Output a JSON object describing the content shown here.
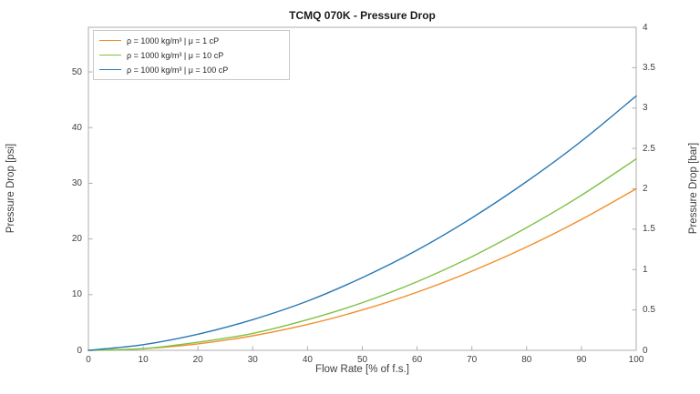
{
  "figure": {
    "background": "#ffffff",
    "axis_color": "#adadad",
    "tick_text_color": "#404040"
  },
  "chart_data": {
    "type": "line",
    "title": "TCMQ 070K - Pressure Drop",
    "xlabel": "Flow Rate [% of f.s.]",
    "ylabel_left": "Pressure Drop [psi]",
    "ylabel_right": "Pressure Drop [bar]",
    "grid": false,
    "legend_position": "top-left-inside",
    "xlim": [
      0,
      100
    ],
    "ylim_left_psi": [
      0,
      58
    ],
    "ylim_right_bar": [
      0,
      4
    ],
    "xticks": [
      0,
      10,
      20,
      30,
      40,
      50,
      60,
      70,
      80,
      90,
      100
    ],
    "yticks_left_psi": [
      0,
      10,
      20,
      30,
      40,
      50
    ],
    "yticks_right_bar": [
      0,
      0.5,
      1,
      1.5,
      2,
      2.5,
      3,
      3.5,
      4
    ],
    "x_percent_fs": [
      0,
      10,
      20,
      30,
      40,
      50,
      60,
      70,
      80,
      90,
      100
    ],
    "series": [
      {
        "name": "rho-1000-mu-1cP",
        "label": "ρ = 1000 kg/m³ | μ = 1 cP",
        "color": "#f28e2c",
        "values_bar": [
          0,
          0.02,
          0.08,
          0.18,
          0.32,
          0.5,
          0.72,
          0.98,
          1.28,
          1.62,
          2.0
        ],
        "values_psi": [
          0,
          0.3,
          1.2,
          2.6,
          4.6,
          7.3,
          10.4,
          14.2,
          18.6,
          23.5,
          29.0
        ]
      },
      {
        "name": "rho-1000-mu-10cP",
        "label": "ρ = 1000 kg/m³ | μ = 10 cP",
        "color": "#7dc243",
        "values_bar": [
          0,
          0.02,
          0.1,
          0.21,
          0.38,
          0.59,
          0.85,
          1.16,
          1.52,
          1.92,
          2.37
        ],
        "values_psi": [
          0,
          0.3,
          1.5,
          3.0,
          5.5,
          8.6,
          12.3,
          16.8,
          22.0,
          27.8,
          34.4
        ]
      },
      {
        "name": "rho-1000-mu-100cP",
        "label": "ρ = 1000 kg/m³ | μ = 100 cP",
        "color": "#2878b5",
        "values_bar": [
          0,
          0.07,
          0.2,
          0.38,
          0.61,
          0.9,
          1.24,
          1.64,
          2.09,
          2.59,
          3.15
        ],
        "values_psi": [
          0,
          1.0,
          2.9,
          5.5,
          8.8,
          13.1,
          18.0,
          23.8,
          30.3,
          37.6,
          45.7
        ]
      }
    ],
    "psi_per_bar": 14.5038
  }
}
